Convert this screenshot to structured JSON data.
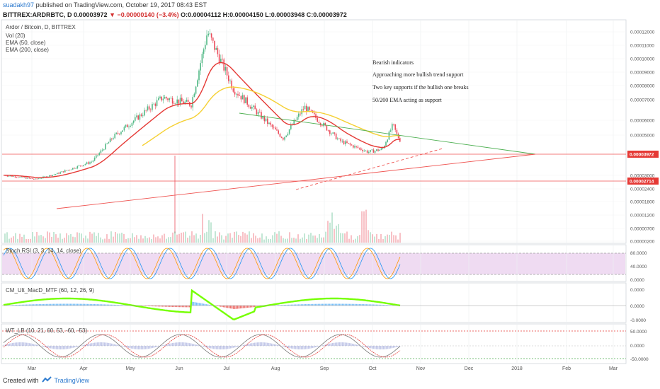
{
  "header": {
    "user": "suadakh97",
    "published": "published on TradingView.com, October 19, 2017 08:43 EST",
    "symbol": "BITTREX:ARDRBTC, D",
    "last": "0.00003972",
    "change": "−0.00000140 (−3.4%)",
    "ohlc": "O:0.00004112 H:0.00004150 L:0.00003948 C:0.00003972"
  },
  "legend": {
    "title": "Ardor / Bitcoin, D, BITTREX",
    "vol": "Vol (20)",
    "ema50": "EMA (50, close)",
    "ema200": "EMA (200, close)"
  },
  "annotations": [
    "Bearish indicators",
    "Approaching more bullish trend support",
    "Two key supports if the bullish one breaks",
    "50/200 EMA acting as support"
  ],
  "panes": {
    "stoch": "Stoch RSI (3, 3, 14, 14, close)",
    "macd": "CM_Ult_MacD_MTF (60, 12, 26, 9)",
    "wt": "WT_LB (10, 21, 60, 53, -60, -53)"
  },
  "footer": {
    "created": "Created with",
    "brand": "TradingView"
  },
  "colors": {
    "up": "#53b987",
    "down": "#eb4d5c",
    "ema50": "#e53935",
    "ema200": "#f5d033",
    "triangle_top": "#4caf50",
    "support": "#ef5350",
    "stoch_fill": "#e1bee7"
  },
  "chart_data": [
    {
      "type": "line",
      "title": "Ardor / Bitcoin, D, BITTREX",
      "x_ticks": [
        "Mar",
        "Apr",
        "May",
        "Jun",
        "Jul",
        "Aug",
        "Sep",
        "Oct",
        "Nov",
        "Dec",
        "2018",
        "Feb",
        "Mar"
      ],
      "y_ticks": [
        "0.00012000",
        "0.00011000",
        "0.00010000",
        "0.00009000",
        "0.00008000",
        "0.00007000",
        "0.00006000",
        "0.00005000",
        "0.00003000",
        "0.00002400",
        "0.00001800",
        "0.00001200",
        "0.00000700",
        "0.00000200"
      ],
      "price_labels": [
        {
          "value": "0.00003972",
          "color": "#e53935"
        },
        {
          "value": "0.00002714",
          "color": "#e53935"
        }
      ],
      "series": [
        {
          "values": [
            1.5e-05,
            1.2e-05,
            1.6e-05,
            2.5e-05,
            4.3e-05,
            7.2e-05,
            6.7e-05,
            0.00012,
            7.8e-05,
            4.2e-05,
            6.5e-05,
            4e-05,
            3.2e-05,
            3.4e-05,
            5.2e-05,
            4.5e-05,
            3.97e-05
          ]
        }
      ]
    },
    {
      "type": "line",
      "title": "Stoch RSI (3, 3, 14, 14, close)",
      "y_ticks": [
        "80.0000",
        "40.0000",
        "0.0000"
      ],
      "ylim": [
        0,
        100
      ]
    },
    {
      "type": "area",
      "title": "CM_Ult_MacD_MTF (60, 12, 26, 9)",
      "y_ticks": [
        "0.0000",
        "0.0000",
        "-0.0000"
      ]
    },
    {
      "type": "line",
      "title": "WT_LB (10, 21, 60, 53, -60, -53)",
      "y_ticks": [
        "50.0000",
        "0.0000",
        "-50.0000"
      ],
      "ylim": [
        -60,
        60
      ]
    }
  ]
}
